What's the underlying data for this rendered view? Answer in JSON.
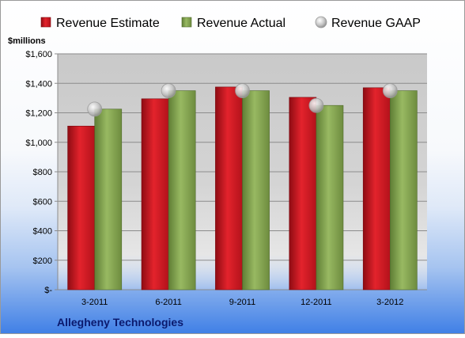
{
  "chart_data": {
    "type": "bar",
    "ylabel": "$millions",
    "categories": [
      "3-2011",
      "6-2011",
      "9-2011",
      "12-2011",
      "3-2012"
    ],
    "series": [
      {
        "name": "Revenue Estimate",
        "kind": "bar",
        "color": "#e0202a",
        "values": [
          1110,
          1295,
          1375,
          1305,
          1370
        ]
      },
      {
        "name": "Revenue Actual",
        "kind": "bar",
        "color": "#8fb05a",
        "values": [
          1225,
          1350,
          1350,
          1250,
          1350
        ]
      },
      {
        "name": "Revenue GAAP",
        "kind": "marker",
        "color": "#c8c8c8",
        "values": [
          1225,
          1350,
          1350,
          1250,
          1350
        ]
      }
    ],
    "ylim": [
      0,
      1600
    ],
    "yticks": [
      0,
      200,
      400,
      600,
      800,
      1000,
      1200,
      1400,
      1600
    ],
    "ytick_labels": [
      "$-",
      "$200",
      "$400",
      "$600",
      "$800",
      "$1,000",
      "$1,200",
      "$1,400",
      "$1,600"
    ],
    "grid": true,
    "legend_position": "top"
  },
  "footer": {
    "company": "Allegheny Technologies"
  }
}
